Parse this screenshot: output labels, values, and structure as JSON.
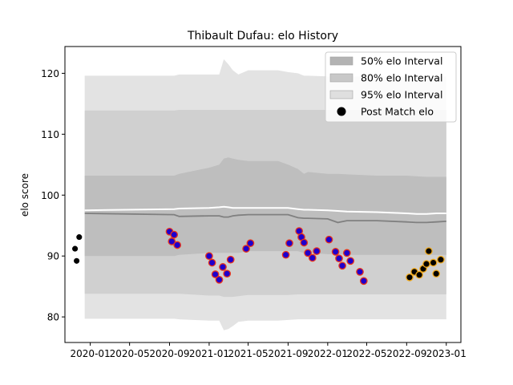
{
  "chart_data": {
    "type": "scatter",
    "title": "Thibault Dufau: elo History",
    "xlabel": "",
    "ylabel": "elo score",
    "xlim": [
      "2019-10-15",
      "2023-02-15"
    ],
    "ylim": [
      75.8,
      124.4
    ],
    "x_ticks": [
      "2020-01",
      "2020-05",
      "2020-09",
      "2021-01",
      "2021-05",
      "2021-09",
      "2022-01",
      "2022-05",
      "2022-09",
      "2023-01"
    ],
    "y_ticks": [
      80,
      90,
      100,
      110,
      120
    ],
    "legend": {
      "placement": "top-right",
      "entries": [
        "50% elo Interval",
        "80% elo Interval",
        "95% elo Interval",
        "Post Match elo"
      ]
    },
    "bands": {
      "x": [
        "2019-12-15",
        "2020-09-15",
        "2020-10-01",
        "2021-01-01",
        "2021-02-01",
        "2021-02-15",
        "2021-03-01",
        "2021-03-15",
        "2021-04-01",
        "2021-05-01",
        "2021-08-01",
        "2021-09-01",
        "2021-10-01",
        "2021-10-20",
        "2021-11-01",
        "2022-01-01",
        "2022-02-01",
        "2022-03-01",
        "2022-06-01",
        "2022-09-01",
        "2022-10-01",
        "2022-11-01",
        "2022-12-01",
        "2023-01-01"
      ],
      "p95_upper": [
        119.6,
        119.6,
        119.8,
        119.8,
        119.8,
        122.3,
        121.5,
        120.5,
        119.8,
        120.5,
        120.5,
        120.2,
        120.0,
        119.6,
        119.6,
        119.5,
        119.5,
        119.5,
        119.5,
        119.5,
        119.5,
        119.5,
        119.5,
        119.5
      ],
      "p95_lower": [
        79.7,
        79.7,
        79.6,
        79.4,
        79.4,
        77.8,
        78.0,
        78.5,
        79.2,
        79.4,
        79.4,
        79.5,
        79.6,
        79.6,
        79.6,
        79.6,
        79.6,
        79.6,
        79.6,
        79.6,
        79.6,
        79.6,
        79.6,
        79.6
      ],
      "p80_upper": [
        113.9,
        113.9,
        114.0,
        114.0,
        114.0,
        114.0,
        114.0,
        114.0,
        114.0,
        114.0,
        114.0,
        114.0,
        114.0,
        114.0,
        114.0,
        114.0,
        114.0,
        114.0,
        114.0,
        114.0,
        114.0,
        114.0,
        114.0,
        114.0
      ],
      "p80_lower": [
        83.8,
        83.8,
        83.8,
        83.5,
        83.5,
        83.3,
        83.3,
        83.3,
        83.4,
        83.6,
        83.6,
        83.6,
        83.7,
        83.7,
        83.7,
        83.7,
        83.7,
        83.7,
        83.7,
        83.7,
        83.7,
        83.7,
        83.7,
        83.7
      ],
      "p50_upper": [
        103.2,
        103.2,
        103.5,
        104.5,
        105.0,
        106.0,
        106.2,
        106.0,
        105.8,
        105.6,
        105.6,
        105.0,
        104.3,
        103.5,
        103.8,
        103.5,
        103.5,
        103.4,
        103.2,
        103.2,
        103.1,
        103.0,
        103.0,
        103.0
      ],
      "p50_lower": [
        90.0,
        90.0,
        90.2,
        90.5,
        90.5,
        90.5,
        90.5,
        90.5,
        90.5,
        90.8,
        90.8,
        90.8,
        90.8,
        90.5,
        90.5,
        90.3,
        90.3,
        90.2,
        90.2,
        90.2,
        90.2,
        90.2,
        90.2,
        90.2
      ],
      "mean": [
        97.0,
        96.8,
        96.5,
        96.6,
        96.6,
        96.4,
        96.4,
        96.6,
        96.7,
        96.8,
        96.8,
        96.8,
        96.3,
        96.2,
        96.2,
        96.1,
        95.5,
        95.8,
        95.8,
        95.6,
        95.5,
        95.5,
        95.6,
        95.7
      ],
      "upper_line": [
        97.5,
        97.7,
        97.8,
        97.9,
        98.0,
        98.1,
        98.0,
        97.9,
        97.9,
        97.9,
        97.9,
        97.9,
        97.7,
        97.6,
        97.6,
        97.5,
        97.4,
        97.3,
        97.2,
        97.0,
        96.9,
        96.9,
        97.0,
        97.0
      ]
    },
    "series": [
      {
        "values": [
          {
            "x": "2019-11-15",
            "y": 91.2
          },
          {
            "x": "2019-11-20",
            "y": 89.2
          },
          {
            "x": "2019-11-28",
            "y": 93.1
          }
        ]
      },
      {
        "values": [
          {
            "x": "2020-09-01",
            "y": 94.0
          },
          {
            "x": "2020-09-08",
            "y": 92.4
          },
          {
            "x": "2020-09-15",
            "y": 93.5
          },
          {
            "x": "2020-09-25",
            "y": 91.8
          },
          {
            "x": "2021-01-01",
            "y": 90.0
          },
          {
            "x": "2021-01-10",
            "y": 88.9
          },
          {
            "x": "2021-01-20",
            "y": 87.0
          },
          {
            "x": "2021-02-01",
            "y": 86.1
          },
          {
            "x": "2021-02-12",
            "y": 88.2
          },
          {
            "x": "2021-02-25",
            "y": 87.1
          },
          {
            "x": "2021-03-08",
            "y": 89.4
          },
          {
            "x": "2021-04-25",
            "y": 91.2
          },
          {
            "x": "2021-05-08",
            "y": 92.1
          },
          {
            "x": "2021-08-25",
            "y": 90.2
          },
          {
            "x": "2021-09-05",
            "y": 92.1
          },
          {
            "x": "2021-10-05",
            "y": 94.1
          },
          {
            "x": "2021-10-12",
            "y": 93.1
          },
          {
            "x": "2021-10-20",
            "y": 92.2
          },
          {
            "x": "2021-11-01",
            "y": 90.5
          },
          {
            "x": "2021-11-15",
            "y": 89.7
          },
          {
            "x": "2021-11-28",
            "y": 90.8
          },
          {
            "x": "2022-01-05",
            "y": 92.7
          },
          {
            "x": "2022-01-25",
            "y": 90.7
          },
          {
            "x": "2022-02-05",
            "y": 89.6
          },
          {
            "x": "2022-02-15",
            "y": 88.4
          },
          {
            "x": "2022-03-01",
            "y": 90.5
          },
          {
            "x": "2022-03-12",
            "y": 89.2
          },
          {
            "x": "2022-04-10",
            "y": 87.4
          },
          {
            "x": "2022-04-22",
            "y": 85.9
          }
        ]
      },
      {
        "values": [
          {
            "x": "2022-09-10",
            "y": 86.5
          },
          {
            "x": "2022-09-25",
            "y": 87.4
          },
          {
            "x": "2022-10-10",
            "y": 86.9
          },
          {
            "x": "2022-10-22",
            "y": 87.9
          },
          {
            "x": "2022-11-01",
            "y": 88.7
          },
          {
            "x": "2022-11-08",
            "y": 90.8
          },
          {
            "x": "2022-11-22",
            "y": 88.9
          },
          {
            "x": "2022-12-01",
            "y": 87.1
          },
          {
            "x": "2022-12-15",
            "y": 89.4
          }
        ]
      }
    ],
    "colors": {
      "p95": "#e3e3e3",
      "p80": "#d0d0d0",
      "p50": "#bebebe",
      "mean_line": "#808080",
      "upper_line": "#ffffff",
      "legend_p50": "#b3b3b3",
      "legend_p80": "#c8c8c8",
      "legend_p95": "#dfdfdf",
      "series_fill": [
        "#000000",
        "#1f00cc",
        "#000000"
      ],
      "series_edge": [
        "#ffffff",
        "#e8341c",
        "#f0a91c"
      ]
    }
  }
}
